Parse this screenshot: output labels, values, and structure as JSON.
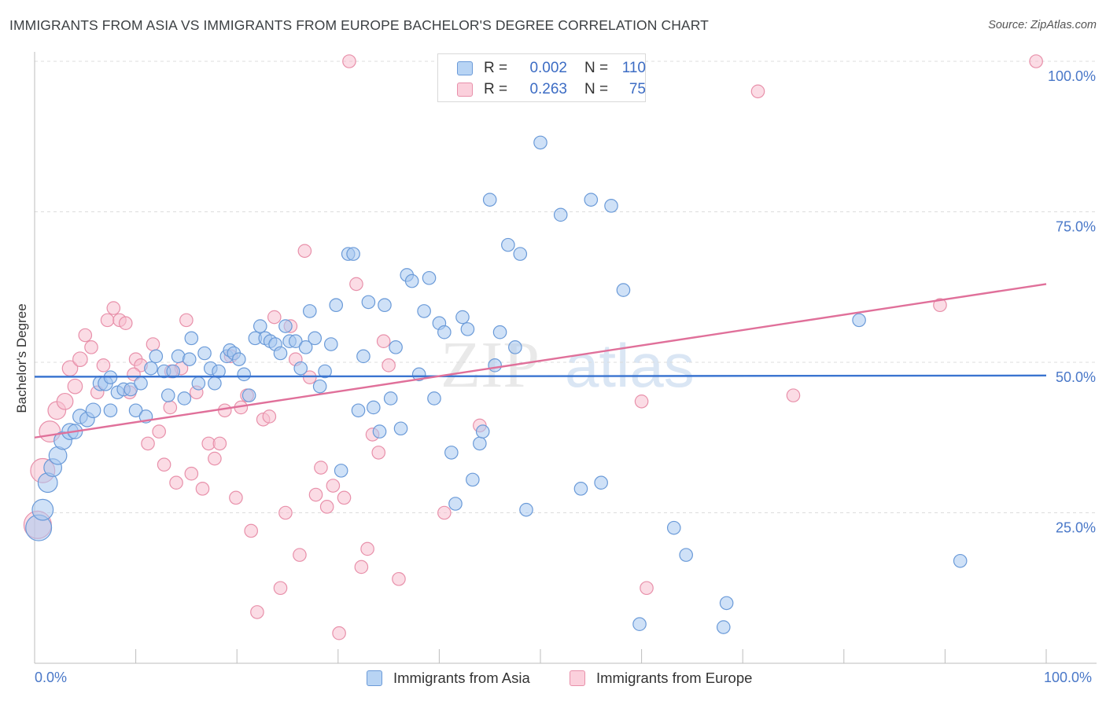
{
  "header": {
    "title": "IMMIGRANTS FROM ASIA VS IMMIGRANTS FROM EUROPE BACHELOR'S DEGREE CORRELATION CHART",
    "source": "Source: ZipAtlas.com"
  },
  "watermark": {
    "zip": "ZIP",
    "atlas": "atlas"
  },
  "legend": {
    "rows": [
      {
        "r_label": "R =",
        "r_value": "0.002",
        "n_label": "N =",
        "n_value": "110",
        "color": "#a8c8f0",
        "border": "#6a9ad8"
      },
      {
        "r_label": "R =",
        "r_value": "0.263",
        "n_label": "N =",
        "n_value": "75",
        "color": "#f8c0d0",
        "border": "#e890aa"
      }
    ]
  },
  "bottom_legend": {
    "asia": "Immigrants from Asia",
    "europe": "Immigrants from Europe"
  },
  "x_axis": {
    "min_label": "0.0%",
    "max_label": "100.0%"
  },
  "chart_data": {
    "type": "scatter",
    "title": "IMMIGRANTS FROM ASIA VS IMMIGRANTS FROM EUROPE BACHELOR'S DEGREE CORRELATION CHART",
    "xlabel": "",
    "ylabel": "Bachelor's Degree",
    "xlim": [
      0,
      100
    ],
    "ylim": [
      0,
      100
    ],
    "y_ticks": [
      {
        "value": 25,
        "label": "25.0%"
      },
      {
        "value": 50,
        "label": "50.0%"
      },
      {
        "value": 75,
        "label": "75.0%"
      },
      {
        "value": 100,
        "label": "100.0%"
      }
    ],
    "grid": "horizontal dashed",
    "legend_position": "top-center",
    "series": [
      {
        "name": "Immigrants from Asia",
        "color": "#a8c8f0",
        "stroke": "#6a9ad8",
        "trend": {
          "x": [
            0,
            100
          ],
          "y": [
            47.6,
            47.8
          ],
          "color": "#3a74d0"
        },
        "points": [
          [
            0.4,
            22.5,
            3.2
          ],
          [
            0.8,
            25.5,
            2.6
          ],
          [
            1.3,
            30,
            2.4
          ],
          [
            1.8,
            32.5,
            2.2
          ],
          [
            2.3,
            34.5,
            2.2
          ],
          [
            2.8,
            37,
            2.2
          ],
          [
            3.5,
            38.5,
            2
          ],
          [
            4,
            38.5,
            1.8
          ],
          [
            4.5,
            41,
            1.8
          ],
          [
            5.2,
            40.5,
            1.8
          ],
          [
            5.8,
            42,
            1.8
          ],
          [
            6.5,
            46.5,
            1.8
          ],
          [
            7,
            46.5,
            1.8
          ],
          [
            7.5,
            47.5,
            1.6
          ],
          [
            7.5,
            42,
            1.6
          ],
          [
            8.2,
            45,
            1.6
          ],
          [
            8.8,
            45.5,
            1.6
          ],
          [
            9.5,
            45.5,
            1.6
          ],
          [
            10,
            42,
            1.6
          ],
          [
            10.5,
            46.5,
            1.6
          ],
          [
            11,
            41,
            1.6
          ],
          [
            11.5,
            49,
            1.6
          ],
          [
            12,
            51,
            1.6
          ],
          [
            12.8,
            48.5,
            1.6
          ],
          [
            13.2,
            44.5,
            1.6
          ],
          [
            13.7,
            48.5,
            1.6
          ],
          [
            14.2,
            51,
            1.6
          ],
          [
            14.8,
            44,
            1.6
          ],
          [
            15.3,
            50.5,
            1.6
          ],
          [
            15.5,
            54,
            1.6
          ],
          [
            16.2,
            46.5,
            1.6
          ],
          [
            16.8,
            51.5,
            1.6
          ],
          [
            17.4,
            49,
            1.6
          ],
          [
            17.8,
            46.5,
            1.6
          ],
          [
            18.2,
            48.5,
            1.6
          ],
          [
            19,
            51,
            1.6
          ],
          [
            19.3,
            52,
            1.6
          ],
          [
            19.7,
            51.5,
            1.6
          ],
          [
            20.2,
            50.5,
            1.6
          ],
          [
            20.7,
            48,
            1.6
          ],
          [
            21.2,
            44.5,
            1.6
          ],
          [
            21.8,
            54,
            1.6
          ],
          [
            22.3,
            56,
            1.6
          ],
          [
            22.8,
            54,
            1.6
          ],
          [
            23.3,
            53.5,
            1.6
          ],
          [
            23.8,
            53,
            1.6
          ],
          [
            24.3,
            51.5,
            1.6
          ],
          [
            24.8,
            56,
            1.6
          ],
          [
            25.2,
            53.5,
            1.6
          ],
          [
            25.8,
            53.5,
            1.6
          ],
          [
            26.3,
            49,
            1.6
          ],
          [
            26.8,
            52.5,
            1.6
          ],
          [
            27.2,
            58.5,
            1.6
          ],
          [
            27.7,
            54,
            1.6
          ],
          [
            28.2,
            46,
            1.6
          ],
          [
            28.7,
            48.5,
            1.6
          ],
          [
            29.3,
            53,
            1.6
          ],
          [
            29.8,
            59.5,
            1.6
          ],
          [
            30.3,
            32,
            1.6
          ],
          [
            31,
            68,
            1.6
          ],
          [
            31.5,
            68,
            1.6
          ],
          [
            32,
            42,
            1.6
          ],
          [
            32.5,
            51,
            1.6
          ],
          [
            33,
            60,
            1.6
          ],
          [
            33.5,
            42.5,
            1.6
          ],
          [
            34.1,
            38.5,
            1.6
          ],
          [
            34.6,
            59.5,
            1.6
          ],
          [
            35.2,
            44,
            1.6
          ],
          [
            35.7,
            52.5,
            1.6
          ],
          [
            36.2,
            39,
            1.6
          ],
          [
            36.8,
            64.5,
            1.6
          ],
          [
            37.3,
            63.5,
            1.6
          ],
          [
            38,
            48,
            1.6
          ],
          [
            38.5,
            58.5,
            1.6
          ],
          [
            39,
            64,
            1.6
          ],
          [
            39.5,
            44,
            1.6
          ],
          [
            40,
            56.5,
            1.6
          ],
          [
            40.5,
            55,
            1.6
          ],
          [
            41.2,
            35,
            1.6
          ],
          [
            41.6,
            26.5,
            1.6
          ],
          [
            42.3,
            57.5,
            1.6
          ],
          [
            42.8,
            55.5,
            1.6
          ],
          [
            43.3,
            30.5,
            1.6
          ],
          [
            44,
            36.5,
            1.6
          ],
          [
            44.3,
            38.5,
            1.6
          ],
          [
            45,
            77,
            1.6
          ],
          [
            45.5,
            49.5,
            1.6
          ],
          [
            46,
            55,
            1.6
          ],
          [
            46.8,
            69.5,
            1.6
          ],
          [
            47.5,
            52.5,
            1.6
          ],
          [
            48,
            68,
            1.6
          ],
          [
            48.6,
            25.5,
            1.6
          ],
          [
            50,
            86.5,
            1.6
          ],
          [
            52,
            74.5,
            1.6
          ],
          [
            54,
            29,
            1.6
          ],
          [
            55,
            77,
            1.6
          ],
          [
            56,
            30,
            1.6
          ],
          [
            57,
            76,
            1.6
          ],
          [
            58.2,
            62,
            1.6
          ],
          [
            59.8,
            6.5,
            1.6
          ],
          [
            63.2,
            22.5,
            1.6
          ],
          [
            64.4,
            18,
            1.6
          ],
          [
            68.1,
            6,
            1.6
          ],
          [
            68.4,
            10,
            1.6
          ],
          [
            81.5,
            57,
            1.6
          ],
          [
            91.5,
            17,
            1.6
          ]
        ]
      },
      {
        "name": "Immigrants from Europe",
        "color": "#f8c0d0",
        "stroke": "#e890aa",
        "trend": {
          "x": [
            0,
            100
          ],
          "y": [
            37.5,
            63
          ],
          "color": "#e0709a"
        },
        "points": [
          [
            0.3,
            23,
            3.4
          ],
          [
            0.8,
            32,
            3
          ],
          [
            1.5,
            38.5,
            2.6
          ],
          [
            2.2,
            42,
            2.2
          ],
          [
            3,
            43.5,
            2
          ],
          [
            3.5,
            49,
            1.9
          ],
          [
            4,
            46,
            1.8
          ],
          [
            4.5,
            50.5,
            1.8
          ],
          [
            5,
            54.5,
            1.6
          ],
          [
            5.6,
            52.5,
            1.6
          ],
          [
            6.2,
            45,
            1.6
          ],
          [
            6.8,
            49.5,
            1.6
          ],
          [
            7.2,
            57,
            1.6
          ],
          [
            7.8,
            59,
            1.6
          ],
          [
            8.4,
            57,
            1.6
          ],
          [
            9,
            56.5,
            1.6
          ],
          [
            9.4,
            45,
            1.6
          ],
          [
            10,
            50.5,
            1.6
          ],
          [
            10.5,
            49.5,
            1.6
          ],
          [
            11.2,
            36.5,
            1.6
          ],
          [
            11.7,
            53,
            1.6
          ],
          [
            12.3,
            38.5,
            1.6
          ],
          [
            12.8,
            33,
            1.6
          ],
          [
            13.4,
            42.5,
            1.6
          ],
          [
            14,
            30,
            1.6
          ],
          [
            14.5,
            49,
            1.6
          ],
          [
            15,
            57,
            1.6
          ],
          [
            15.5,
            31.5,
            1.6
          ],
          [
            16,
            45,
            1.6
          ],
          [
            16.6,
            29,
            1.6
          ],
          [
            17.2,
            36.5,
            1.6
          ],
          [
            17.8,
            34,
            1.6
          ],
          [
            18.3,
            36.5,
            1.6
          ],
          [
            18.8,
            42,
            1.6
          ],
          [
            19.4,
            51,
            1.6
          ],
          [
            19.9,
            27.5,
            1.6
          ],
          [
            20.4,
            42.5,
            1.6
          ],
          [
            21,
            44.5,
            1.6
          ],
          [
            21.4,
            22,
            1.6
          ],
          [
            22,
            8.5,
            1.6
          ],
          [
            22.6,
            40.5,
            1.6
          ],
          [
            23.2,
            41,
            1.6
          ],
          [
            23.7,
            57.5,
            1.6
          ],
          [
            24.3,
            12.5,
            1.6
          ],
          [
            24.8,
            25,
            1.6
          ],
          [
            25.3,
            56,
            1.6
          ],
          [
            25.8,
            50.5,
            1.6
          ],
          [
            26.2,
            18,
            1.6
          ],
          [
            26.7,
            68.5,
            1.6
          ],
          [
            27.2,
            47.5,
            1.6
          ],
          [
            27.8,
            28,
            1.6
          ],
          [
            28.3,
            32.5,
            1.6
          ],
          [
            28.9,
            26,
            1.6
          ],
          [
            29.5,
            29.5,
            1.6
          ],
          [
            30.1,
            5,
            1.6
          ],
          [
            30.6,
            27.5,
            1.6
          ],
          [
            31.1,
            100,
            1.6
          ],
          [
            31.8,
            63,
            1.6
          ],
          [
            32.3,
            16,
            1.6
          ],
          [
            32.9,
            19,
            1.6
          ],
          [
            33.4,
            38,
            1.6
          ],
          [
            34,
            35,
            1.6
          ],
          [
            34.5,
            53.5,
            1.6
          ],
          [
            35,
            49.5,
            1.6
          ],
          [
            36,
            14,
            1.6
          ],
          [
            40.5,
            25,
            1.6
          ],
          [
            44,
            39.5,
            1.6
          ],
          [
            71.5,
            95,
            1.6
          ],
          [
            60,
            43.5,
            1.6
          ],
          [
            60.5,
            12.5,
            1.6
          ],
          [
            75,
            44.5,
            1.6
          ],
          [
            89.5,
            59.5,
            1.6
          ],
          [
            99,
            100,
            1.6
          ],
          [
            13.5,
            48.5,
            1.6
          ],
          [
            9.8,
            48,
            1.6
          ]
        ]
      }
    ]
  }
}
